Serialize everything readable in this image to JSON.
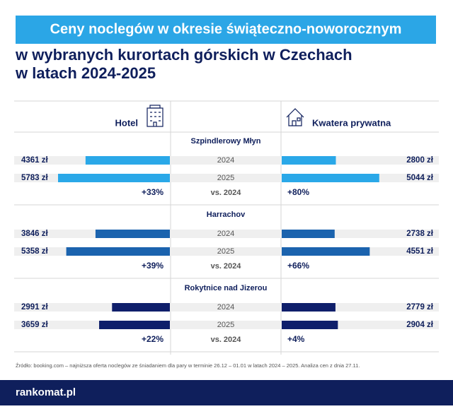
{
  "chart_data": {
    "type": "butterfly",
    "title": "Ceny noclegów w okresie świąteczno-noworocznym",
    "subtitle": [
      "w wybranych kurortach górskich w Czechach",
      "w latach 2024-2025"
    ],
    "left_label": "Hotel",
    "right_label": "Kwatera prywatna",
    "groups": [
      {
        "name": "Szpindlerowy Młyn",
        "color": "#2aa8e8",
        "categories": [
          "2024",
          "2025"
        ],
        "hotel": [
          4361,
          5783
        ],
        "hotel_labels": [
          "4361 zł",
          "5783 zł"
        ],
        "private": [
          2800,
          5044
        ],
        "private_labels": [
          "2800 zł",
          "5044 zł"
        ],
        "compare": "vs. 2024",
        "hotel_change": "+33%",
        "private_change": "+80%"
      },
      {
        "name": "Harrachov",
        "color": "#1b63ae",
        "categories": [
          "2024",
          "2025"
        ],
        "hotel": [
          3846,
          5358
        ],
        "hotel_labels": [
          "3846 zł",
          "5358 zł"
        ],
        "private": [
          2738,
          4551
        ],
        "private_labels": [
          "2738 zł",
          "4551 zł"
        ],
        "compare": "vs. 2024",
        "hotel_change": "+39%",
        "private_change": "+66%"
      },
      {
        "name": "Rokytnice nad Jizerou",
        "color": "#0f1f6b",
        "categories": [
          "2024",
          "2025"
        ],
        "hotel": [
          2991,
          3659
        ],
        "hotel_labels": [
          "2991 zł",
          "3659 zł"
        ],
        "private": [
          2779,
          2904
        ],
        "private_labels": [
          "2779 zł",
          "2904 zł"
        ],
        "compare": "vs. 2024",
        "hotel_change": "+22%",
        "private_change": "+4%"
      }
    ],
    "source": "Źródło: booking.com – najniższa oferta noclegów ze śniadaniem dla pary w terminie 26.12 – 01.01 w latach 2024 – 2025. Analiza cen z dnia 27.11.",
    "logo": "rankomat.pl"
  }
}
